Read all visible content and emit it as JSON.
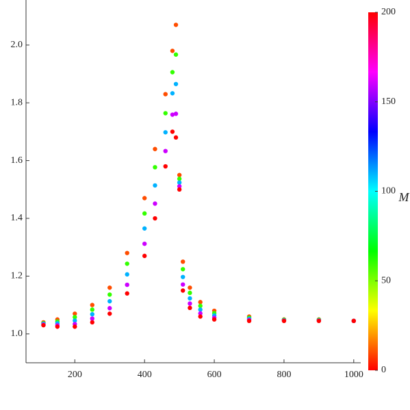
{
  "chart_data": {
    "type": "scatter",
    "x": [
      110,
      150,
      200,
      250,
      300,
      350,
      400,
      430,
      460,
      480,
      490,
      500,
      510,
      530,
      560,
      600,
      700,
      800,
      900,
      1000
    ],
    "series": [
      {
        "m": 10,
        "values": [
          1.04,
          1.05,
          1.07,
          1.1,
          1.16,
          1.28,
          1.47,
          1.64,
          1.83,
          1.98,
          2.07,
          1.55,
          1.25,
          1.16,
          1.11,
          1.08,
          1.06,
          1.05,
          1.05,
          1.045
        ]
      },
      {
        "m": 60,
        "values": [
          1.037,
          1.043,
          1.058,
          1.084,
          1.136,
          1.243,
          1.417,
          1.577,
          1.764,
          1.906,
          1.967,
          1.537,
          1.224,
          1.142,
          1.097,
          1.072,
          1.056,
          1.049,
          1.049,
          1.045
        ]
      },
      {
        "m": 110,
        "values": [
          1.035,
          1.037,
          1.046,
          1.068,
          1.113,
          1.206,
          1.365,
          1.514,
          1.698,
          1.833,
          1.865,
          1.524,
          1.197,
          1.123,
          1.084,
          1.064,
          1.052,
          1.047,
          1.047,
          1.045
        ]
      },
      {
        "m": 160,
        "values": [
          1.032,
          1.03,
          1.034,
          1.053,
          1.089,
          1.17,
          1.312,
          1.451,
          1.633,
          1.759,
          1.762,
          1.511,
          1.171,
          1.105,
          1.071,
          1.056,
          1.048,
          1.046,
          1.046,
          1.045
        ]
      },
      {
        "m": 200,
        "values": [
          1.03,
          1.025,
          1.025,
          1.04,
          1.07,
          1.14,
          1.27,
          1.4,
          1.58,
          1.7,
          1.68,
          1.5,
          1.15,
          1.09,
          1.06,
          1.05,
          1.045,
          1.045,
          1.045,
          1.045
        ]
      }
    ],
    "colormap": "hue",
    "xlim": [
      60,
      1020
    ],
    "xticks": [
      200,
      400,
      600,
      800,
      1000
    ],
    "ylim": [
      0.9,
      2.156
    ],
    "yticks": [
      {
        "value": 1.0,
        "label": "1.0"
      },
      1.2,
      1.4,
      1.6,
      1.8,
      {
        "value": 2.0,
        "label": "2.0"
      }
    ],
    "colorbar": {
      "label": "M",
      "lim": [
        0,
        200
      ],
      "ticks": [
        0,
        50,
        100,
        150,
        200
      ]
    }
  }
}
